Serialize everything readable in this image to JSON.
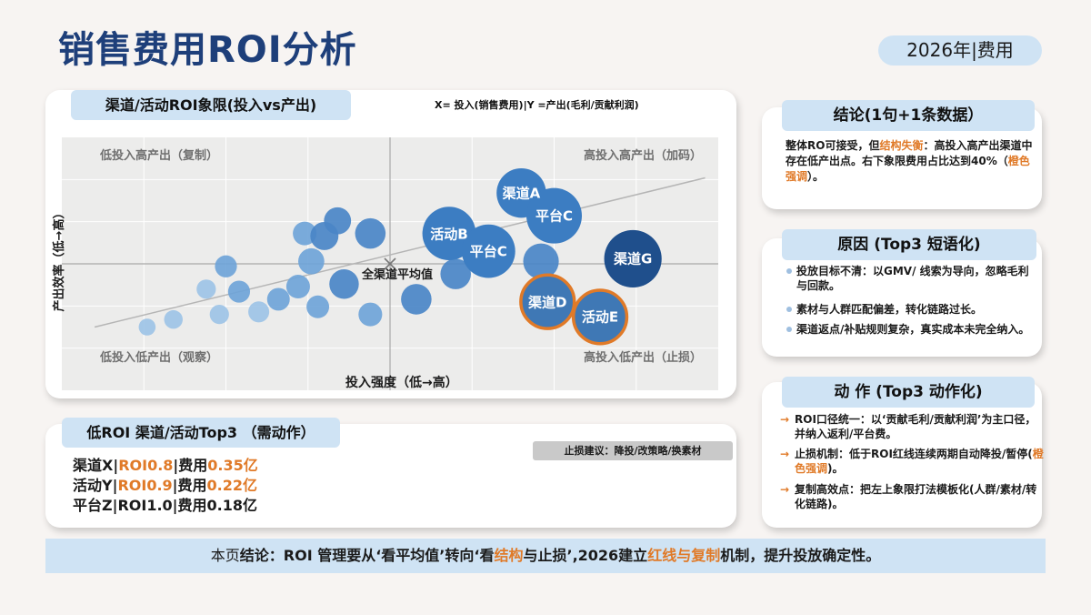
{
  "title": "销售费用ROI分析",
  "year_badge": "2026年|费用",
  "chart_section": {
    "tag": "渠道/活动ROI象限(投入vs产出)",
    "axis_note": "X= 投入(销售费用)|Y =产出(毛利/贡献利润)",
    "quadrants": {
      "top_left": "低投入高产出（复制）",
      "top_right": "高投入高产出（加码）",
      "bottom_left": "低投入低产出（观察）",
      "bottom_right": "高投入低产出（止损）"
    },
    "ylabel": "产出效率（低→高）",
    "xlabel": "投入强度（低→高）",
    "avg_label": "全渠道平均值"
  },
  "chart_data": {
    "type": "scatter",
    "xlabel": "投入强度（低→高）",
    "ylabel": "产出效率（低→高）",
    "labeled_points": [
      {
        "label": "渠道A",
        "x": 0.7,
        "y": 0.78,
        "size": 0.6,
        "highlight": false
      },
      {
        "label": "平台C",
        "x": 0.75,
        "y": 0.69,
        "size": 0.75,
        "highlight": false
      },
      {
        "label": "活动B",
        "x": 0.59,
        "y": 0.62,
        "size": 0.7,
        "highlight": false
      },
      {
        "label": "平台C",
        "x": 0.65,
        "y": 0.55,
        "size": 0.7,
        "highlight": false
      },
      {
        "label": "渠道G",
        "x": 0.87,
        "y": 0.52,
        "size": 0.8,
        "highlight": false
      },
      {
        "label": "渠道D",
        "x": 0.74,
        "y": 0.35,
        "size": 0.7,
        "highlight": true
      },
      {
        "label": "活动E",
        "x": 0.82,
        "y": 0.29,
        "size": 0.7,
        "highlight": true
      }
    ],
    "unlabeled_points": [
      {
        "x": 0.13,
        "y": 0.25,
        "size": 0.15
      },
      {
        "x": 0.17,
        "y": 0.28,
        "size": 0.2
      },
      {
        "x": 0.22,
        "y": 0.4,
        "size": 0.22
      },
      {
        "x": 0.24,
        "y": 0.3,
        "size": 0.22
      },
      {
        "x": 0.25,
        "y": 0.49,
        "size": 0.3
      },
      {
        "x": 0.27,
        "y": 0.39,
        "size": 0.3
      },
      {
        "x": 0.3,
        "y": 0.31,
        "size": 0.27
      },
      {
        "x": 0.33,
        "y": 0.36,
        "size": 0.32
      },
      {
        "x": 0.36,
        "y": 0.41,
        "size": 0.35
      },
      {
        "x": 0.37,
        "y": 0.62,
        "size": 0.35
      },
      {
        "x": 0.38,
        "y": 0.51,
        "size": 0.42
      },
      {
        "x": 0.39,
        "y": 0.33,
        "size": 0.32
      },
      {
        "x": 0.4,
        "y": 0.61,
        "size": 0.48
      },
      {
        "x": 0.42,
        "y": 0.67,
        "size": 0.45
      },
      {
        "x": 0.43,
        "y": 0.42,
        "size": 0.52
      },
      {
        "x": 0.47,
        "y": 0.62,
        "size": 0.55
      },
      {
        "x": 0.47,
        "y": 0.3,
        "size": 0.35
      },
      {
        "x": 0.54,
        "y": 0.36,
        "size": 0.55
      },
      {
        "x": 0.6,
        "y": 0.46,
        "size": 0.55
      },
      {
        "x": 0.73,
        "y": 0.51,
        "size": 0.7
      }
    ],
    "average_point": {
      "x": 0.5,
      "y": 0.5
    },
    "trend_line": {
      "from": {
        "x": 0.05,
        "y": 0.25
      },
      "to": {
        "x": 0.98,
        "y": 0.84
      }
    },
    "colors": {
      "point_light": "#9dc3e6",
      "point_mid": "#4a86c7",
      "point_dark": "#1f4f8c",
      "highlight_ring": "#e07a28"
    }
  },
  "low_roi": {
    "tag": "低ROI 渠道/活动Top3 （需动作）",
    "stop_advice": "止损建议：降投/改策略/换素材",
    "rows": [
      {
        "name": "渠道X|",
        "roi": "ROI0.8",
        "fee_label": "|费用",
        "fee": "0.35亿"
      },
      {
        "name": "活动Y|",
        "roi": "ROI0.9",
        "fee_label": "|费用",
        "fee": "0.22亿"
      },
      {
        "name": "平台Z|",
        "roi": "ROI1.0",
        "fee_label": "|费用",
        "fee": "0.18亿"
      }
    ]
  },
  "conclusion": {
    "tag": "结论(1句+1条数据）",
    "text_1": "整体RO可接受，但",
    "text_hl": "结构失衡",
    "text_2": "：高投入高产出渠道中存在低产出点。右下象限费用占比达到40%（",
    "text_hl2": "橙色强调",
    "text_3": "）。"
  },
  "reasons": {
    "tag": "原因 (Top3  短语化)",
    "items": [
      "投放目标不清：以GMV/ 线索为导向，忽略毛利与回款。",
      "素材与人群匹配偏差，转化链路过长。",
      "渠道返点/补贴规则复杂，真实成本未完全纳入。"
    ]
  },
  "actions": {
    "tag": "动 作 (Top3  动作化)",
    "item1": "ROI口径统一：以‘贡献毛利/贡献利润’为主口径，并纳入返利/平台费。",
    "item2_a": "止损机制：低于ROI红线连续两期自动降投/暂停(",
    "item2_hl": "橙色强调",
    "item2_b": ")。",
    "item3": "复制高效点：把左上象限打法模板化(人群/素材/转化链路)。"
  },
  "footer": {
    "pre": "本页",
    "a": "结论：ROI 管理要从‘看平均值’转向‘看",
    "hl1": "结构",
    "b": "与止损’,2026建立",
    "hl2": "红线与复制",
    "c": "机制，提升投放确定性。"
  }
}
